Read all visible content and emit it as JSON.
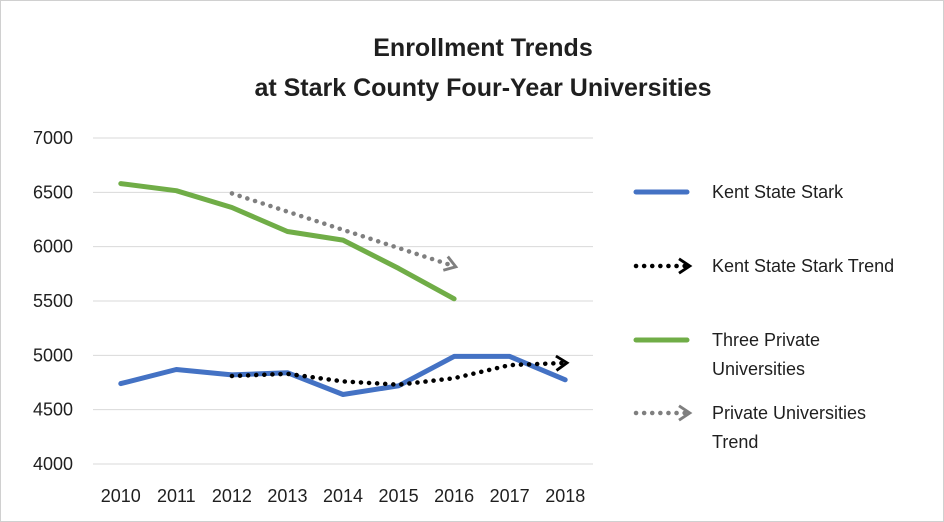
{
  "chart_data": {
    "type": "line",
    "title_lines": [
      "Enrollment Trends",
      "at Stark County Four-Year Universities"
    ],
    "xlabel": "",
    "ylabel": "",
    "categories": [
      "2010",
      "2011",
      "2012",
      "2013",
      "2014",
      "2015",
      "2016",
      "2017",
      "2018"
    ],
    "ylim": [
      4000,
      7000
    ],
    "yticks": [
      "4000",
      "4500",
      "5000",
      "5500",
      "6000",
      "6500",
      "7000"
    ],
    "grid": "horizontal",
    "legend_position": "right",
    "series": [
      {
        "name": "Kent State Stark",
        "color": "#4472c4",
        "style": "solid",
        "values": [
          4740,
          4870,
          4820,
          4840,
          4640,
          4720,
          4990,
          4990,
          4775
        ]
      },
      {
        "name": "Kent State Stark Trend",
        "color": "#000000",
        "style": "dotted-arrow",
        "x": [
          "2012",
          "2013",
          "2014",
          "2015",
          "2016",
          "2017",
          "2018"
        ],
        "values": [
          4810,
          4830,
          4760,
          4730,
          4790,
          4910,
          4930
        ]
      },
      {
        "name": "Three Private Universities",
        "color": "#70ad47",
        "style": "solid",
        "values": [
          6580,
          6515,
          6360,
          6140,
          6060,
          5800,
          5520,
          null,
          null
        ]
      },
      {
        "name": "Private Universities Trend",
        "color": "#7f7f7f",
        "style": "dotted-arrow",
        "x": [
          "2012",
          "2016"
        ],
        "values": [
          6490,
          5820
        ]
      }
    ],
    "legend": [
      {
        "label_lines": [
          "Kent State Stark"
        ],
        "series": 0
      },
      {
        "label_lines": [
          "Kent State Stark Trend"
        ],
        "series": 1
      },
      {
        "label_lines": [
          "Three Private",
          "Universities"
        ],
        "series": 2
      },
      {
        "label_lines": [
          "Private Universities",
          "Trend"
        ],
        "series": 3
      }
    ]
  }
}
